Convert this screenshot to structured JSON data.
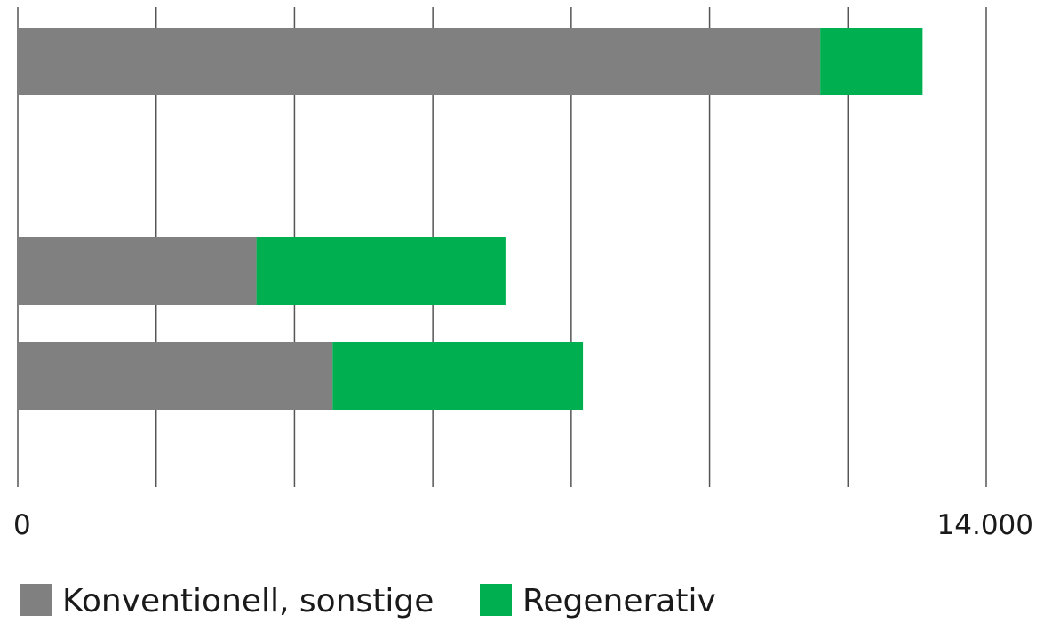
{
  "chart_data": {
    "type": "bar",
    "orientation": "horizontal",
    "stacked": true,
    "categories": [
      "",
      "",
      "",
      ""
    ],
    "series": [
      {
        "name": "Konventionell, sonstige",
        "values": [
          11600,
          0,
          3450,
          4550
        ]
      },
      {
        "name": "Regenerativ",
        "values": [
          1480,
          0,
          3600,
          3620
        ]
      }
    ],
    "xlim": [
      0,
      14000
    ],
    "x_ticks": [
      0,
      2000,
      4000,
      6000,
      8000,
      10000,
      12000,
      14000
    ],
    "x_tick_labels": [
      "0",
      "",
      "",
      "",
      "",
      "",
      "",
      "14.000"
    ],
    "grid": true,
    "legend_position": "bottom-left",
    "colors": {
      "Konventionell, sonstige": "#808080",
      "Regenerativ": "#00b050",
      "grid": "#555555"
    },
    "title": "",
    "xlabel": "",
    "ylabel": ""
  }
}
